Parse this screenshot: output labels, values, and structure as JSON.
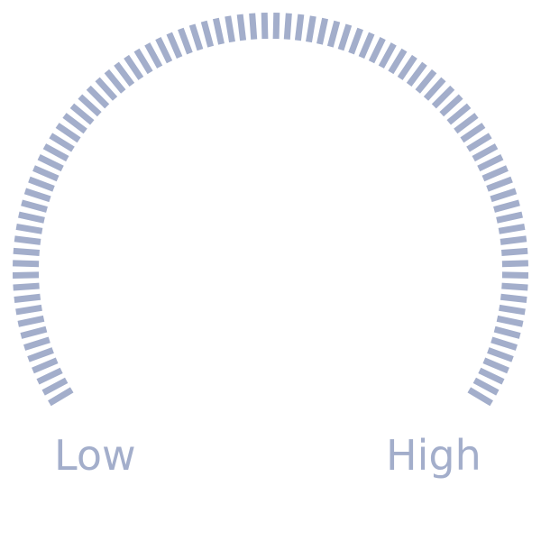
{
  "dial": {
    "min_label": "Low",
    "max_label": "High",
    "value": 0,
    "tick_count": 90,
    "tick_color": "#a3aecb"
  }
}
